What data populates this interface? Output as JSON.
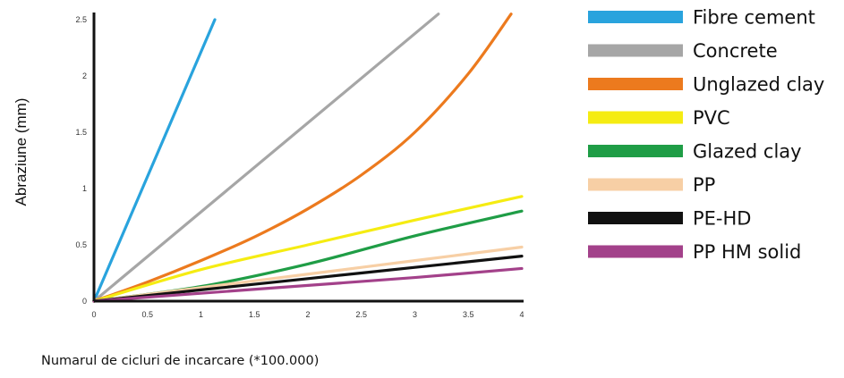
{
  "chart_data": {
    "type": "line",
    "title": "",
    "xlabel": "Numarul de cicluri de incarcare (*100.000)",
    "ylabel": "Abraziune (mm)",
    "xlim": [
      0,
      4
    ],
    "ylim": [
      0,
      2.5
    ],
    "x_ticks": [
      "0",
      "0.5",
      "1",
      "1.5",
      "2",
      "2.5",
      "3",
      "3.5",
      "4"
    ],
    "y_ticks": [
      "0",
      "0.5",
      "1",
      "1.5",
      "2",
      "2.5"
    ],
    "grid": false,
    "legend_position": "right",
    "series": [
      {
        "name": "Fibre cement",
        "color": "#29a3dd",
        "x": [
          0,
          1.13
        ],
        "y": [
          0,
          2.5
        ]
      },
      {
        "name": "Concrete",
        "color": "#a6a6a6",
        "x": [
          0,
          3.22
        ],
        "y": [
          0,
          2.55
        ]
      },
      {
        "name": "Unglazed clay",
        "color": "#ec7a1e",
        "x": [
          0,
          0.5,
          1,
          1.5,
          2,
          2.5,
          3,
          3.5,
          3.9
        ],
        "y": [
          0,
          0.17,
          0.36,
          0.57,
          0.82,
          1.12,
          1.5,
          2.02,
          2.55
        ]
      },
      {
        "name": "PVC",
        "color": "#f5ec12",
        "x": [
          0,
          1,
          2,
          3,
          4
        ],
        "y": [
          0,
          0.28,
          0.5,
          0.72,
          0.93
        ]
      },
      {
        "name": "Glazed clay",
        "color": "#1f9d46",
        "x": [
          0,
          1,
          2,
          3,
          4
        ],
        "y": [
          0,
          0.13,
          0.33,
          0.58,
          0.8
        ]
      },
      {
        "name": "PP",
        "color": "#f7cfa5",
        "x": [
          0,
          1,
          2,
          3,
          4
        ],
        "y": [
          0,
          0.12,
          0.24,
          0.36,
          0.48
        ]
      },
      {
        "name": "PE-HD",
        "color": "#111111",
        "x": [
          0,
          1,
          2,
          3,
          4
        ],
        "y": [
          0,
          0.1,
          0.2,
          0.3,
          0.4
        ]
      },
      {
        "name": "PP HM solid",
        "color": "#a3418a",
        "x": [
          0,
          1,
          2,
          3,
          4
        ],
        "y": [
          0,
          0.07,
          0.14,
          0.21,
          0.29
        ]
      }
    ]
  }
}
